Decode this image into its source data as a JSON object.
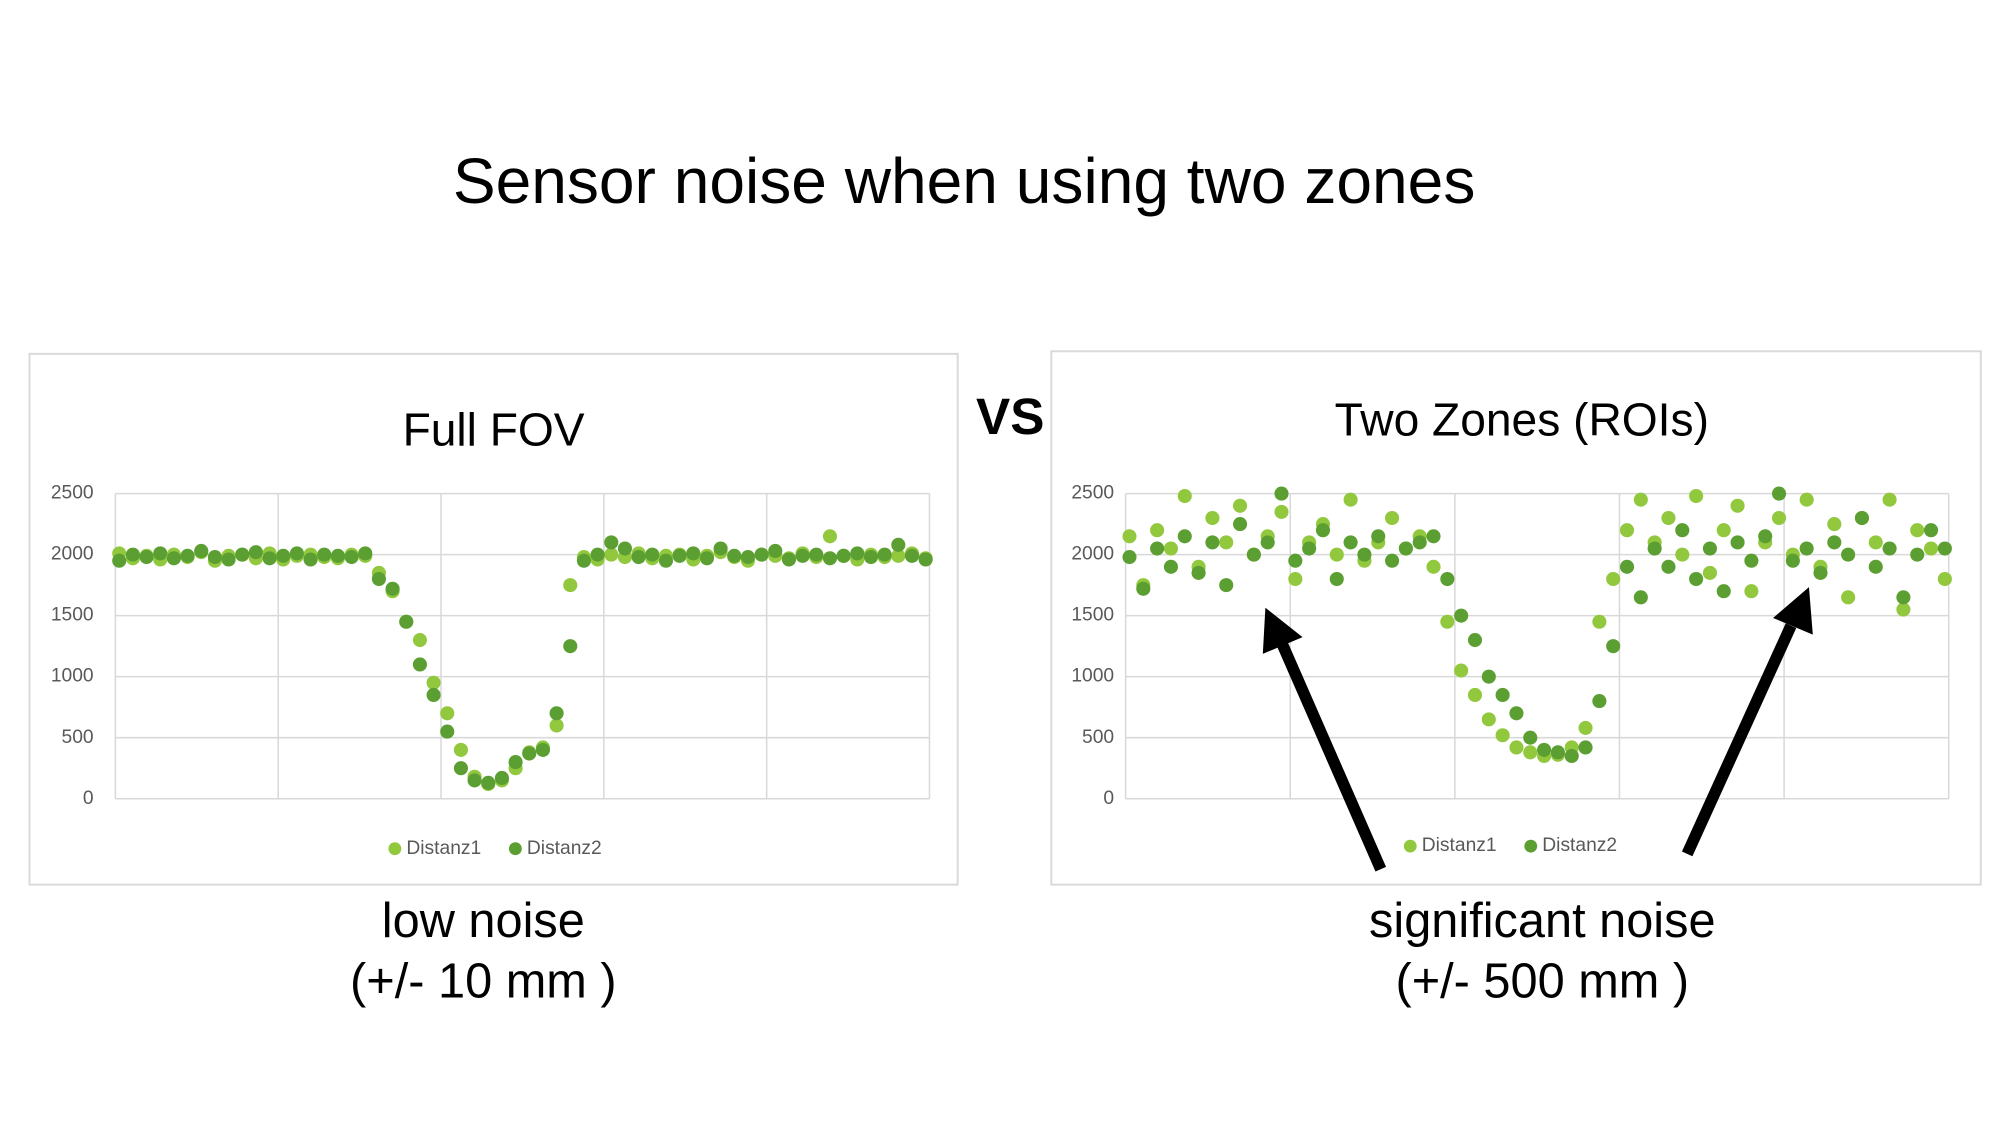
{
  "slide": {
    "title": "Sensor noise when using two zones",
    "vs": "VS",
    "captions": [
      [
        "low noise",
        "(+/- 10 mm )"
      ],
      [
        "significant noise",
        "(+/- 500 mm )"
      ]
    ]
  },
  "chart_data": [
    {
      "type": "scatter",
      "title": "Full FOV",
      "ylim": [
        0,
        2500
      ],
      "yticks": [
        0,
        500,
        1000,
        1500,
        2000,
        2500
      ],
      "grid": true,
      "legend": "bottom",
      "series": [
        {
          "name": "Distanz1",
          "color": "#92c83e",
          "values": [
            2010,
            1970,
            1990,
            1960,
            2000,
            1980,
            2020,
            1950,
            1990,
            2000,
            1970,
            2010,
            1960,
            1990,
            2000,
            1980,
            1970,
            2000,
            1990,
            1850,
            1700,
            1450,
            1300,
            950,
            700,
            400,
            180,
            120,
            150,
            250,
            380,
            420,
            600,
            1750,
            1980,
            1960,
            2000,
            1980,
            2010,
            1970,
            1990,
            2000,
            1960,
            1990,
            2020,
            1980,
            1950,
            2000,
            1990,
            1970,
            2010,
            1980,
            2150,
            1990,
            1960,
            2000,
            1980,
            1990,
            2010,
            1970
          ]
        },
        {
          "name": "Distanz2",
          "color": "#5b9f32",
          "values": [
            1950,
            2000,
            1980,
            2010,
            1970,
            1990,
            2030,
            1980,
            1960,
            2000,
            2020,
            1970,
            1990,
            2010,
            1960,
            2000,
            1990,
            1980,
            2010,
            1800,
            1720,
            1450,
            1100,
            850,
            550,
            250,
            150,
            130,
            170,
            300,
            370,
            400,
            700,
            1250,
            1950,
            2000,
            2100,
            2050,
            1980,
            2000,
            1950,
            1990,
            2010,
            1970,
            2050,
            1990,
            1980,
            2000,
            2030,
            1960,
            1990,
            2000,
            1970,
            1990,
            2010,
            1980,
            2000,
            2080,
            1990,
            1960
          ]
        }
      ]
    },
    {
      "type": "scatter",
      "title": "Two Zones (ROIs)",
      "ylim": [
        0,
        2500
      ],
      "yticks": [
        0,
        500,
        1000,
        1500,
        2000,
        2500
      ],
      "grid": true,
      "legend": "bottom",
      "series": [
        {
          "name": "Distanz1",
          "color": "#92c83e",
          "values": [
            2150,
            1750,
            2200,
            2050,
            2480,
            1900,
            2300,
            2100,
            2400,
            2000,
            2150,
            2350,
            1800,
            2100,
            2250,
            2000,
            2450,
            1950,
            2100,
            2300,
            2050,
            2150,
            1900,
            1450,
            1050,
            850,
            650,
            520,
            420,
            380,
            350,
            360,
            420,
            580,
            1450,
            1800,
            2200,
            2450,
            2100,
            2300,
            2000,
            2480,
            1850,
            2200,
            2400,
            1700,
            2100,
            2300,
            2000,
            2450,
            1900,
            2250,
            1650,
            2300,
            2100,
            2450,
            1550,
            2200,
            2050,
            1800
          ]
        },
        {
          "name": "Distanz2",
          "color": "#5b9f32",
          "values": [
            1980,
            1720,
            2050,
            1900,
            2150,
            1850,
            2100,
            1750,
            2250,
            2000,
            2100,
            2500,
            1950,
            2050,
            2200,
            1800,
            2100,
            2000,
            2150,
            1950,
            2050,
            2100,
            2150,
            1800,
            1500,
            1300,
            1000,
            850,
            700,
            500,
            400,
            380,
            350,
            420,
            800,
            1250,
            1900,
            1650,
            2050,
            1900,
            2200,
            1800,
            2050,
            1700,
            2100,
            1950,
            2150,
            2500,
            1950,
            2050,
            1850,
            2100,
            2000,
            2300,
            1900,
            2050,
            1650,
            2000,
            2200,
            2050
          ]
        }
      ]
    }
  ]
}
